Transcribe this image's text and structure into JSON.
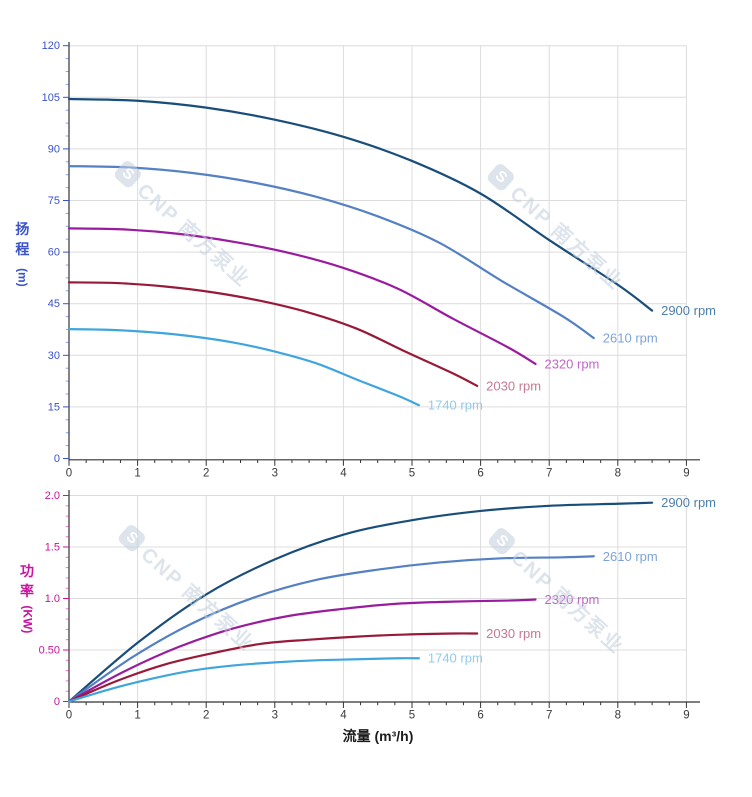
{
  "watermark": {
    "logo_letter": "S",
    "text": "CNP 南方泵业"
  },
  "head_axis_title": {
    "line1": "扬",
    "line2": "程",
    "unit": "(m)",
    "color": "#3a52cc"
  },
  "power_axis_title": {
    "line1": "功",
    "line2": "率",
    "unit": "(KW)",
    "color": "#c8149e"
  },
  "x_axis_title": "流量 (m³/h)",
  "chart_data": [
    {
      "id": "head",
      "type": "line",
      "title": "",
      "ylabel": "扬程 (m)",
      "xlabel": "流量 (m³/h)",
      "x_range": [
        0,
        9
      ],
      "y_range": [
        0,
        120
      ],
      "x_major_step": 1,
      "x_minor_step": 0.25,
      "y_major_step": 15,
      "y_minor_step": 3.75,
      "x_tick_labels": [
        "0",
        "1",
        "2",
        "3",
        "4",
        "5",
        "6",
        "7",
        "8",
        "9"
      ],
      "y_tick_labels": [
        "0",
        "15",
        "30",
        "45",
        "60",
        "75",
        "90",
        "105",
        "120"
      ],
      "axis_color": "#3a52cc",
      "x_tick_label_color": "#3a3a3a",
      "grid_color": "#dcdcdc",
      "grid": true,
      "legend_position": "at-curve-ends",
      "series": [
        {
          "name": "2900 rpm",
          "rpm": 2900,
          "color": "#1a4e7a",
          "label_color": "#4c7fab",
          "points": [
            [
              0,
              104.5
            ],
            [
              1,
              104
            ],
            [
              2,
              102
            ],
            [
              3,
              98.5
            ],
            [
              4,
              93.5
            ],
            [
              5,
              86.5
            ],
            [
              6,
              77
            ],
            [
              7,
              63.5
            ],
            [
              8,
              50.5
            ],
            [
              8.5,
              43
            ]
          ]
        },
        {
          "name": "2610 rpm",
          "rpm": 2610,
          "color": "#5480c4",
          "label_color": "#7ea3da",
          "points": [
            [
              0,
              85
            ],
            [
              0.9,
              84.6
            ],
            [
              1.8,
              83
            ],
            [
              2.7,
              80.2
            ],
            [
              3.6,
              76.1
            ],
            [
              4.5,
              70.4
            ],
            [
              5.4,
              62.7
            ],
            [
              6.3,
              51.7
            ],
            [
              7.2,
              41.3
            ],
            [
              7.65,
              35
            ]
          ]
        },
        {
          "name": "2320 rpm",
          "rpm": 2320,
          "color": "#991c9e",
          "label_color": "#c066c8",
          "points": [
            [
              0,
              66.9
            ],
            [
              0.8,
              66.6
            ],
            [
              1.6,
              65.3
            ],
            [
              2.4,
              63
            ],
            [
              3.2,
              59.8
            ],
            [
              4,
              55.4
            ],
            [
              4.8,
              49.3
            ],
            [
              5.6,
              40.6
            ],
            [
              6.4,
              32.3
            ],
            [
              6.8,
              27.5
            ]
          ]
        },
        {
          "name": "2030 rpm",
          "rpm": 2030,
          "color": "#981a38",
          "label_color": "#c5798e",
          "points": [
            [
              0,
              51.2
            ],
            [
              0.7,
              51
            ],
            [
              1.4,
              50
            ],
            [
              2.1,
              48.3
            ],
            [
              2.8,
              45.8
            ],
            [
              3.5,
              42.4
            ],
            [
              4.2,
              37.7
            ],
            [
              4.9,
              31.1
            ],
            [
              5.6,
              24.7
            ],
            [
              5.95,
              21.1
            ]
          ]
        },
        {
          "name": "1740 rpm",
          "rpm": 1740,
          "color": "#3fa5dc",
          "label_color": "#92cbeb",
          "points": [
            [
              0,
              37.6
            ],
            [
              0.6,
              37.4
            ],
            [
              1.2,
              36.7
            ],
            [
              1.8,
              35.5
            ],
            [
              2.4,
              33.7
            ],
            [
              3,
              31.1
            ],
            [
              3.6,
              27.7
            ],
            [
              4.2,
              22.9
            ],
            [
              4.8,
              18.2
            ],
            [
              5.1,
              15.5
            ]
          ]
        }
      ]
    },
    {
      "id": "power",
      "type": "line",
      "title": "",
      "ylabel": "功率 (KW)",
      "xlabel": "流量 (m³/h)",
      "x_range": [
        0,
        9
      ],
      "y_range": [
        0,
        2.0
      ],
      "x_major_step": 1,
      "x_minor_step": 0.25,
      "y_major_step": 0.5,
      "y_minor_step": 0.1,
      "x_tick_labels": [
        "0",
        "1",
        "2",
        "3",
        "4",
        "5",
        "6",
        "7",
        "8",
        "9"
      ],
      "y_tick_labels": [
        "0",
        "0.50",
        "1.0",
        "1.5",
        "2.0"
      ],
      "axis_color": "#c8149e",
      "x_tick_label_color": "#3a3a3a",
      "grid_color": "#dcdcdc",
      "grid": true,
      "legend_position": "at-curve-ends",
      "series": [
        {
          "name": "2900 rpm",
          "rpm": 2900,
          "color": "#1a4e7a",
          "label_color": "#4c7fab",
          "points": [
            [
              0,
              0
            ],
            [
              1,
              0.57
            ],
            [
              2,
              1.04
            ],
            [
              3,
              1.38
            ],
            [
              4,
              1.62
            ],
            [
              5,
              1.76
            ],
            [
              6,
              1.85
            ],
            [
              7,
              1.9
            ],
            [
              8,
              1.92
            ],
            [
              8.5,
              1.93
            ]
          ]
        },
        {
          "name": "2610 rpm",
          "rpm": 2610,
          "color": "#5480c4",
          "label_color": "#7ea3da",
          "points": [
            [
              0,
              0
            ],
            [
              0.9,
              0.42
            ],
            [
              1.8,
              0.76
            ],
            [
              2.7,
              1.01
            ],
            [
              3.6,
              1.18
            ],
            [
              4.5,
              1.28
            ],
            [
              5.4,
              1.35
            ],
            [
              6.3,
              1.39
            ],
            [
              7.2,
              1.4
            ],
            [
              7.65,
              1.41
            ]
          ]
        },
        {
          "name": "2320 rpm",
          "rpm": 2320,
          "color": "#991c9e",
          "label_color": "#c066c8",
          "points": [
            [
              0,
              0
            ],
            [
              0.8,
              0.29
            ],
            [
              1.6,
              0.53
            ],
            [
              2.4,
              0.71
            ],
            [
              3.2,
              0.83
            ],
            [
              4,
              0.9
            ],
            [
              4.8,
              0.95
            ],
            [
              5.6,
              0.97
            ],
            [
              6.4,
              0.98
            ],
            [
              6.8,
              0.99
            ]
          ]
        },
        {
          "name": "2030 rpm",
          "rpm": 2030,
          "color": "#981a38",
          "label_color": "#c5798e",
          "points": [
            [
              0,
              0
            ],
            [
              0.7,
              0.2
            ],
            [
              1.4,
              0.36
            ],
            [
              2.1,
              0.47
            ],
            [
              2.8,
              0.56
            ],
            [
              3.5,
              0.6
            ],
            [
              4.2,
              0.63
            ],
            [
              4.9,
              0.65
            ],
            [
              5.6,
              0.66
            ],
            [
              5.95,
              0.66
            ]
          ]
        },
        {
          "name": "1740 rpm",
          "rpm": 1740,
          "color": "#3fa5dc",
          "label_color": "#92cbeb",
          "points": [
            [
              0,
              0
            ],
            [
              0.6,
              0.12
            ],
            [
              1.2,
              0.22
            ],
            [
              1.8,
              0.3
            ],
            [
              2.4,
              0.35
            ],
            [
              3,
              0.38
            ],
            [
              3.6,
              0.4
            ],
            [
              4.2,
              0.41
            ],
            [
              4.8,
              0.42
            ],
            [
              5.1,
              0.42
            ]
          ]
        }
      ]
    }
  ]
}
